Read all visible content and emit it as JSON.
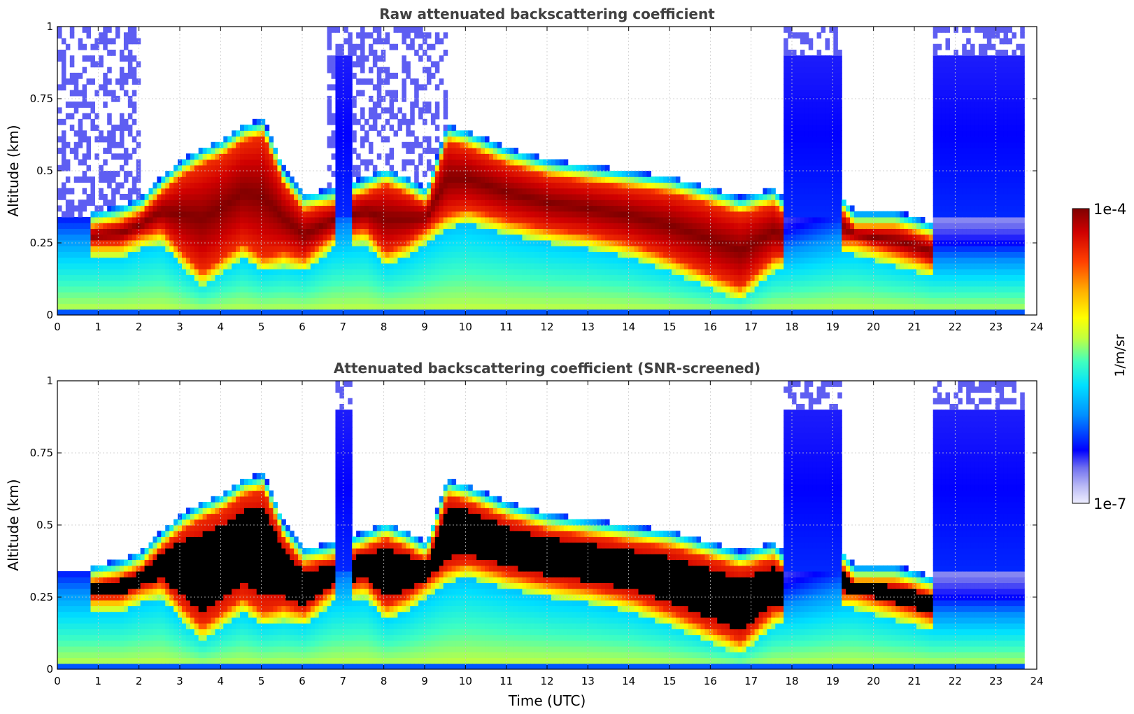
{
  "chart_data": [
    {
      "type": "heatmap",
      "title": "Raw attenuated backscattering coefficient",
      "xlabel": "",
      "ylabel": "Altitude (km)",
      "xlim": [
        0,
        24
      ],
      "ylim": [
        0,
        1
      ],
      "x_ticks": [
        "0",
        "1",
        "2",
        "3",
        "4",
        "5",
        "6",
        "7",
        "8",
        "9",
        "10",
        "11",
        "12",
        "13",
        "14",
        "15",
        "16",
        "17",
        "18",
        "19",
        "20",
        "21",
        "22",
        "23",
        "24"
      ],
      "y_ticks": [
        "0",
        "0.25",
        "0.5",
        "0.75",
        "1"
      ],
      "grid": true,
      "screened": false,
      "cloud_layer": {
        "time": [
          0.8,
          1.5,
          2.0,
          2.5,
          3.0,
          3.5,
          4.0,
          4.5,
          5.0,
          5.5,
          6.0,
          6.7,
          7.5,
          8.0,
          8.5,
          9.0,
          9.5,
          10.0,
          11.0,
          12.0,
          13.0,
          14.0,
          15.0,
          16.0,
          16.7,
          17.5,
          18.1,
          19.2,
          19.5,
          20.0,
          20.5,
          21.0,
          21.4
        ],
        "base_km": [
          0.25,
          0.25,
          0.28,
          0.3,
          0.22,
          0.15,
          0.2,
          0.25,
          0.2,
          0.22,
          0.2,
          0.28,
          0.3,
          0.22,
          0.25,
          0.3,
          0.35,
          0.37,
          0.33,
          0.3,
          0.28,
          0.25,
          0.2,
          0.14,
          0.1,
          0.2,
          0.22,
          0.26,
          0.26,
          0.24,
          0.22,
          0.2,
          0.18
        ],
        "top_km": [
          0.3,
          0.32,
          0.35,
          0.42,
          0.48,
          0.52,
          0.55,
          0.6,
          0.62,
          0.45,
          0.36,
          0.38,
          0.42,
          0.45,
          0.42,
          0.38,
          0.6,
          0.58,
          0.52,
          0.48,
          0.46,
          0.44,
          0.42,
          0.38,
          0.35,
          0.38,
          0.3,
          0.35,
          0.3,
          0.3,
          0.3,
          0.28,
          0.26
        ]
      },
      "clear_sky_periods": [
        [
          6.8,
          7.2
        ],
        [
          17.7,
          19.2
        ],
        [
          21.4,
          23.6
        ]
      ],
      "noisy_high_altitude_periods": [
        [
          0,
          2.0
        ],
        [
          6.6,
          9.5
        ],
        [
          17.7,
          19.2
        ],
        [
          21.4,
          23.6
        ]
      ],
      "data_end_time": 23.6
    },
    {
      "type": "heatmap",
      "title": "Attenuated backscattering coefficient (SNR-screened)",
      "xlabel": "Time (UTC)",
      "ylabel": "Altitude (km)",
      "xlim": [
        0,
        24
      ],
      "ylim": [
        0,
        1
      ],
      "x_ticks": [
        "0",
        "1",
        "2",
        "3",
        "4",
        "5",
        "6",
        "7",
        "8",
        "9",
        "10",
        "11",
        "12",
        "13",
        "14",
        "15",
        "16",
        "17",
        "18",
        "19",
        "20",
        "21",
        "22",
        "23",
        "24"
      ],
      "y_ticks": [
        "0",
        "0.25",
        "0.5",
        "0.75",
        "1"
      ],
      "grid": true,
      "screened": true,
      "saturated_color": "#000000",
      "data_end_time": 23.6
    }
  ],
  "colorbar": {
    "max_label": "1e-4",
    "min_label": "1e-7",
    "unit_label": "1/m/sr",
    "scale": "log",
    "range": [
      1e-07,
      0.0001
    ],
    "colormap": [
      "#eeeeff",
      "#b8b8f5",
      "#7070f0",
      "#0000ff",
      "#0090ff",
      "#00e0ff",
      "#40ffc0",
      "#c0ff40",
      "#ffff00",
      "#ffb000",
      "#ff4000",
      "#d00000",
      "#800000"
    ]
  }
}
